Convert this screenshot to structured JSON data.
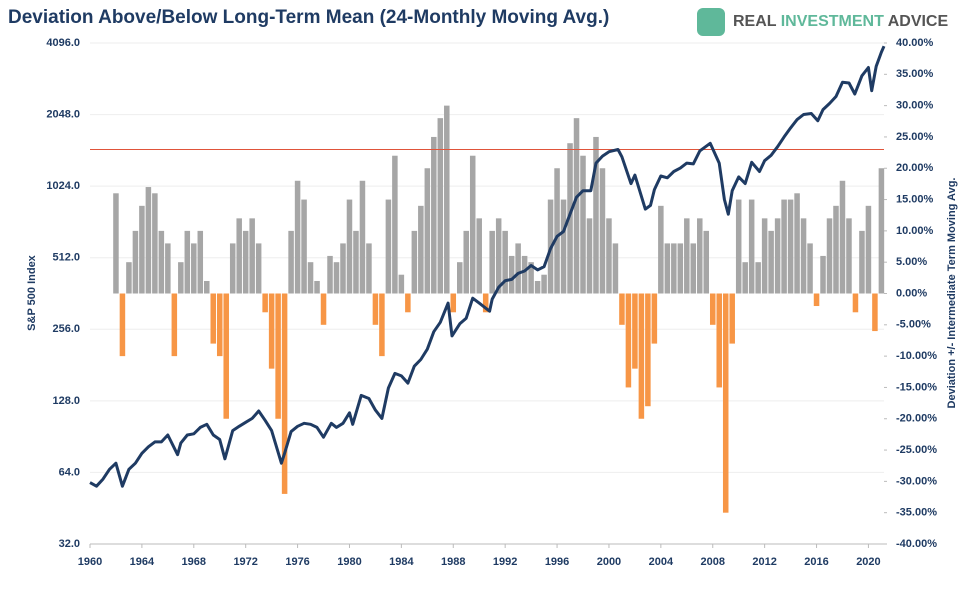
{
  "chart_data": {
    "type": "combo",
    "title": "Deviation Above/Below Long-Term Mean (24-Monthly Moving Avg.)",
    "brand": [
      "REAL",
      "INVESTMENT",
      "ADVICE"
    ],
    "ylabel": "S&P 500 Index",
    "y2label": "Deviation +/- Intermediate Term Moving Avg.",
    "xlim": [
      1960,
      2021.2
    ],
    "xticks": [
      1960,
      1964,
      1968,
      1972,
      1976,
      1980,
      1984,
      1988,
      1992,
      1996,
      2000,
      2004,
      2008,
      2012,
      2016,
      2020
    ],
    "log_y": true,
    "ylim": [
      32,
      4096
    ],
    "yticks": [
      {
        "value": 32,
        "label": "32.0"
      },
      {
        "value": 64,
        "label": "64.0"
      },
      {
        "value": 128,
        "label": "128.0"
      },
      {
        "value": 256,
        "label": "256.0"
      },
      {
        "value": 512,
        "label": "512.0"
      },
      {
        "value": 1024,
        "label": "1024.0"
      },
      {
        "value": 2048,
        "label": "2048.0"
      },
      {
        "value": 4096,
        "label": "4096.0"
      }
    ],
    "y2lim": [
      -40,
      40
    ],
    "y2ticks": [
      {
        "value": -40,
        "label": "-40.00%"
      },
      {
        "value": -35,
        "label": "-35.00%"
      },
      {
        "value": -30,
        "label": "-30.00%"
      },
      {
        "value": -25,
        "label": "-25.00%"
      },
      {
        "value": -20,
        "label": "-20.00%"
      },
      {
        "value": -15,
        "label": "-15.00%"
      },
      {
        "value": -10,
        "label": "-10.00%"
      },
      {
        "value": -5,
        "label": "-5.00%"
      },
      {
        "value": 0,
        "label": "0.00%"
      },
      {
        "value": 5,
        "label": "5.00%"
      },
      {
        "value": 10,
        "label": "10.00%"
      },
      {
        "value": 15,
        "label": "15.00%"
      },
      {
        "value": 20,
        "label": "20.00%"
      },
      {
        "value": 25,
        "label": "25.00%"
      },
      {
        "value": 30,
        "label": "30.00%"
      },
      {
        "value": 35,
        "label": "35.00%"
      },
      {
        "value": 40,
        "label": "40.00%"
      }
    ],
    "grid": true,
    "reference_line": {
      "value": 23,
      "color": "#e0543a",
      "axis": "y2"
    },
    "bars": {
      "axis": "y2",
      "positive_color": "#a6a6a6",
      "negative_color": "#f79646",
      "x": [
        1962,
        1962.5,
        1963,
        1963.5,
        1964,
        1964.5,
        1965,
        1965.5,
        1966,
        1966.5,
        1967,
        1967.5,
        1968,
        1968.5,
        1969,
        1969.5,
        1970,
        1970.5,
        1971,
        1971.5,
        1972,
        1972.5,
        1973,
        1973.5,
        1974,
        1974.5,
        1975,
        1975.5,
        1976,
        1976.5,
        1977,
        1977.5,
        1978,
        1978.5,
        1979,
        1979.5,
        1980,
        1980.5,
        1981,
        1981.5,
        1982,
        1982.5,
        1983,
        1983.5,
        1984,
        1984.5,
        1985,
        1985.5,
        1986,
        1986.5,
        1987,
        1987.5,
        1988,
        1988.5,
        1989,
        1989.5,
        1990,
        1990.5,
        1991,
        1991.5,
        1992,
        1992.5,
        1993,
        1993.5,
        1994,
        1994.5,
        1995,
        1995.5,
        1996,
        1996.5,
        1997,
        1997.5,
        1998,
        1998.5,
        1999,
        1999.5,
        2000,
        2000.5,
        2001,
        2001.5,
        2002,
        2002.5,
        2003,
        2003.5,
        2004,
        2004.5,
        2005,
        2005.5,
        2006,
        2006.5,
        2007,
        2007.5,
        2008,
        2008.5,
        2009,
        2009.5,
        2010,
        2010.5,
        2011,
        2011.5,
        2012,
        2012.5,
        2013,
        2013.5,
        2014,
        2014.5,
        2015,
        2015.5,
        2016,
        2016.5,
        2017,
        2017.5,
        2018,
        2018.5,
        2019,
        2019.5,
        2020,
        2020.5,
        2021
      ],
      "values": [
        16,
        -10,
        5,
        10,
        14,
        17,
        16,
        10,
        8,
        -10,
        5,
        10,
        8,
        10,
        2,
        -8,
        -10,
        -20,
        8,
        12,
        10,
        12,
        8,
        -3,
        -12,
        -20,
        -32,
        10,
        18,
        15,
        5,
        2,
        -5,
        6,
        5,
        8,
        15,
        10,
        18,
        8,
        -5,
        -10,
        15,
        22,
        3,
        -3,
        10,
        14,
        20,
        25,
        28,
        30,
        -3,
        5,
        10,
        22,
        12,
        -3,
        10,
        12,
        10,
        6,
        8,
        6,
        5,
        2,
        3,
        15,
        20,
        15,
        24,
        28,
        22,
        12,
        25,
        20,
        12,
        8,
        -5,
        -15,
        -12,
        -20,
        -18,
        -8,
        14,
        8,
        8,
        8,
        12,
        8,
        12,
        10,
        -5,
        -15,
        -35,
        -8,
        15,
        5,
        15,
        5,
        12,
        10,
        12,
        15,
        15,
        16,
        12,
        8,
        -2,
        6,
        12,
        14,
        18,
        12,
        -3,
        10,
        14,
        -6,
        20
      ]
    },
    "line": {
      "color": "#1f3b63",
      "x": [
        1960,
        1960.5,
        1961,
        1961.5,
        1962,
        1962.5,
        1963,
        1963.5,
        1964,
        1964.5,
        1965,
        1965.5,
        1966,
        1966.75,
        1967,
        1967.5,
        1968,
        1968.5,
        1969,
        1969.5,
        1970,
        1970.4,
        1971,
        1971.5,
        1972,
        1972.5,
        1973,
        1973.5,
        1974,
        1974.75,
        1975,
        1975.5,
        1976,
        1976.5,
        1977,
        1977.5,
        1978,
        1978.6,
        1979,
        1979.5,
        1980,
        1980.25,
        1980.9,
        1981.5,
        1982,
        1982.5,
        1983,
        1983.5,
        1984,
        1984.5,
        1985,
        1985.5,
        1986,
        1986.5,
        1987,
        1987.6,
        1987.9,
        1988.5,
        1989,
        1989.5,
        1990,
        1990.8,
        1991,
        1991.5,
        1992,
        1992.5,
        1993,
        1993.5,
        1994,
        1994.5,
        1995,
        1995.5,
        1996,
        1996.5,
        1997,
        1997.5,
        1998,
        1998.6,
        1999,
        1999.5,
        2000,
        2000.7,
        2001,
        2001.7,
        2002,
        2002.8,
        2003.2,
        2003.5,
        2004,
        2004.5,
        2005,
        2005.5,
        2006,
        2006.5,
        2007,
        2007.8,
        2008.5,
        2008.9,
        2009.2,
        2009.5,
        2010,
        2010.5,
        2011,
        2011.6,
        2012,
        2012.5,
        2013,
        2013.5,
        2014,
        2014.5,
        2015,
        2015.6,
        2016.1,
        2016.5,
        2017,
        2017.5,
        2018,
        2018.5,
        2018.95,
        2019.5,
        2020,
        2020.25,
        2020.6,
        2021,
        2021.2
      ],
      "values": [
        58,
        56,
        60,
        66,
        70,
        56,
        66,
        70,
        77,
        82,
        86,
        86,
        92,
        76,
        85,
        92,
        93,
        99,
        102,
        92,
        88,
        73,
        96,
        100,
        104,
        108,
        116,
        106,
        96,
        70,
        77,
        95,
        100,
        103,
        102,
        99,
        90,
        103,
        99,
        103,
        114,
        102,
        135,
        131,
        117,
        108,
        145,
        167,
        163,
        152,
        179,
        191,
        211,
        250,
        274,
        330,
        240,
        270,
        285,
        346,
        330,
        305,
        343,
        385,
        410,
        415,
        440,
        450,
        475,
        455,
        470,
        560,
        630,
        660,
        780,
        920,
        980,
        980,
        1280,
        1370,
        1430,
        1460,
        1360,
        1050,
        1140,
        820,
        850,
        990,
        1130,
        1110,
        1180,
        1220,
        1280,
        1270,
        1440,
        1550,
        1280,
        900,
        780,
        980,
        1120,
        1050,
        1290,
        1180,
        1310,
        1380,
        1500,
        1650,
        1800,
        1950,
        2050,
        2070,
        1930,
        2150,
        2280,
        2440,
        2800,
        2780,
        2500,
        2980,
        3230,
        2580,
        3270,
        3750,
        3970
      ]
    }
  }
}
